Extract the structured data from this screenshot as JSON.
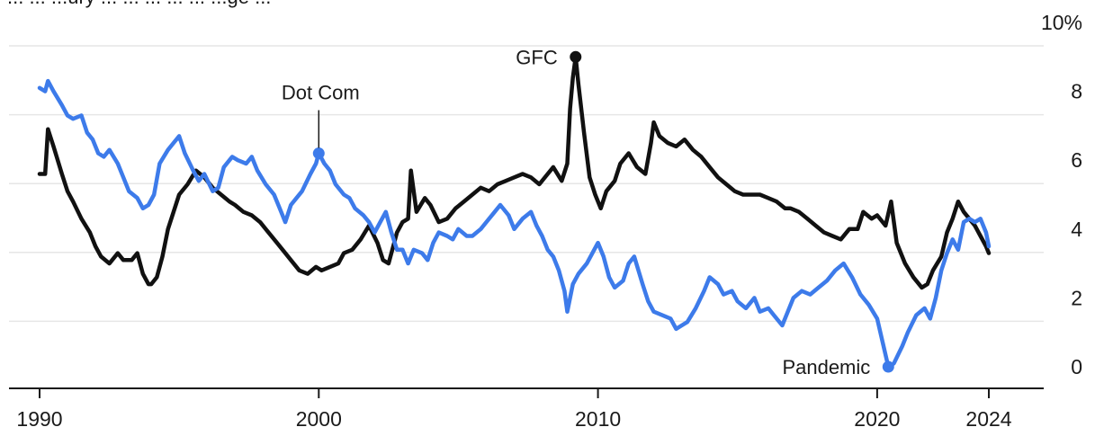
{
  "header": {
    "partial_title": "... ... ...ury ... ... ... ... ... ...ge ..."
  },
  "colors": {
    "black_series": "#111111",
    "blue_series": "#3d7bea",
    "grid": "#e6e6e6",
    "text": "#1a1a1a"
  },
  "chart_data": {
    "type": "line",
    "title": "",
    "xlabel": "",
    "ylabel": "",
    "y_unit_label": "10%",
    "xlim": [
      1990,
      2024
    ],
    "ylim": [
      0,
      10
    ],
    "grid": true,
    "x_ticks": [
      {
        "value": 1990,
        "label": "1990"
      },
      {
        "value": 2000,
        "label": "2000"
      },
      {
        "value": 2010,
        "label": "2010"
      },
      {
        "value": 2020,
        "label": "2020"
      },
      {
        "value": 2024,
        "label": "2024"
      }
    ],
    "y_ticks": [
      {
        "value": 0,
        "label": "0"
      },
      {
        "value": 2,
        "label": "2"
      },
      {
        "value": 4,
        "label": "4"
      },
      {
        "value": 6,
        "label": "6"
      },
      {
        "value": 8,
        "label": "8"
      },
      {
        "value": 10,
        "label": "10%"
      }
    ],
    "series": [
      {
        "color": "#111111",
        "points": [
          [
            1990.0,
            5.6
          ],
          [
            1990.2,
            5.6
          ],
          [
            1990.3,
            6.9
          ],
          [
            1990.5,
            6.4
          ],
          [
            1990.8,
            5.6
          ],
          [
            1991.0,
            5.1
          ],
          [
            1991.2,
            4.8
          ],
          [
            1991.5,
            4.3
          ],
          [
            1991.8,
            3.9
          ],
          [
            1992.0,
            3.5
          ],
          [
            1992.2,
            3.2
          ],
          [
            1992.5,
            3.0
          ],
          [
            1992.8,
            3.3
          ],
          [
            1993.0,
            3.1
          ],
          [
            1993.3,
            3.1
          ],
          [
            1993.5,
            3.3
          ],
          [
            1993.7,
            2.7
          ],
          [
            1993.9,
            2.4
          ],
          [
            1994.0,
            2.4
          ],
          [
            1994.2,
            2.6
          ],
          [
            1994.4,
            3.2
          ],
          [
            1994.6,
            4.0
          ],
          [
            1994.8,
            4.5
          ],
          [
            1995.0,
            5.0
          ],
          [
            1995.3,
            5.3
          ],
          [
            1995.6,
            5.7
          ],
          [
            1995.9,
            5.5
          ],
          [
            1996.2,
            5.2
          ],
          [
            1996.5,
            5.0
          ],
          [
            1996.8,
            4.8
          ],
          [
            1997.0,
            4.7
          ],
          [
            1997.3,
            4.5
          ],
          [
            1997.6,
            4.4
          ],
          [
            1997.9,
            4.2
          ],
          [
            1998.2,
            3.9
          ],
          [
            1998.5,
            3.6
          ],
          [
            1998.8,
            3.3
          ],
          [
            1999.0,
            3.1
          ],
          [
            1999.3,
            2.8
          ],
          [
            1999.6,
            2.7
          ],
          [
            1999.9,
            2.9
          ],
          [
            2000.1,
            2.8
          ],
          [
            2000.4,
            2.9
          ],
          [
            2000.7,
            3.0
          ],
          [
            2000.9,
            3.3
          ],
          [
            2001.2,
            3.4
          ],
          [
            2001.5,
            3.7
          ],
          [
            2001.8,
            4.1
          ],
          [
            2002.1,
            3.6
          ],
          [
            2002.3,
            3.1
          ],
          [
            2002.5,
            3.0
          ],
          [
            2002.8,
            3.9
          ],
          [
            2003.0,
            4.2
          ],
          [
            2003.2,
            4.3
          ],
          [
            2003.3,
            5.7
          ],
          [
            2003.5,
            4.5
          ],
          [
            2003.8,
            4.9
          ],
          [
            2004.0,
            4.7
          ],
          [
            2004.3,
            4.2
          ],
          [
            2004.6,
            4.3
          ],
          [
            2004.9,
            4.6
          ],
          [
            2005.2,
            4.8
          ],
          [
            2005.5,
            5.0
          ],
          [
            2005.8,
            5.2
          ],
          [
            2006.1,
            5.1
          ],
          [
            2006.4,
            5.3
          ],
          [
            2006.7,
            5.4
          ],
          [
            2007.0,
            5.5
          ],
          [
            2007.3,
            5.6
          ],
          [
            2007.6,
            5.5
          ],
          [
            2007.9,
            5.3
          ],
          [
            2008.2,
            5.6
          ],
          [
            2008.4,
            5.8
          ],
          [
            2008.7,
            5.4
          ],
          [
            2008.9,
            5.9
          ],
          [
            2009.0,
            7.5
          ],
          [
            2009.1,
            8.4
          ],
          [
            2009.2,
            9.0
          ],
          [
            2009.3,
            8.2
          ],
          [
            2009.5,
            6.8
          ],
          [
            2009.7,
            5.5
          ],
          [
            2009.9,
            5.0
          ],
          [
            2010.1,
            4.6
          ],
          [
            2010.3,
            5.1
          ],
          [
            2010.6,
            5.4
          ],
          [
            2010.8,
            5.9
          ],
          [
            2011.1,
            6.2
          ],
          [
            2011.4,
            5.8
          ],
          [
            2011.7,
            5.6
          ],
          [
            2011.9,
            6.5
          ],
          [
            2012.0,
            7.1
          ],
          [
            2012.2,
            6.7
          ],
          [
            2012.5,
            6.5
          ],
          [
            2012.8,
            6.4
          ],
          [
            2013.1,
            6.6
          ],
          [
            2013.4,
            6.3
          ],
          [
            2013.7,
            6.1
          ],
          [
            2014.0,
            5.8
          ],
          [
            2014.3,
            5.5
          ],
          [
            2014.6,
            5.3
          ],
          [
            2014.9,
            5.1
          ],
          [
            2015.2,
            5.0
          ],
          [
            2015.5,
            5.0
          ],
          [
            2015.8,
            5.0
          ],
          [
            2016.1,
            4.9
          ],
          [
            2016.4,
            4.8
          ],
          [
            2016.7,
            4.6
          ],
          [
            2016.9,
            4.6
          ],
          [
            2017.2,
            4.5
          ],
          [
            2017.5,
            4.3
          ],
          [
            2017.8,
            4.1
          ],
          [
            2018.1,
            3.9
          ],
          [
            2018.4,
            3.8
          ],
          [
            2018.7,
            3.7
          ],
          [
            2019.0,
            4.0
          ],
          [
            2019.3,
            4.0
          ],
          [
            2019.5,
            4.5
          ],
          [
            2019.8,
            4.3
          ],
          [
            2020.0,
            4.4
          ],
          [
            2020.3,
            4.1
          ],
          [
            2020.5,
            4.8
          ],
          [
            2020.7,
            3.6
          ],
          [
            2021.0,
            3.0
          ],
          [
            2021.3,
            2.6
          ],
          [
            2021.6,
            2.3
          ],
          [
            2021.8,
            2.4
          ],
          [
            2022.0,
            2.8
          ],
          [
            2022.3,
            3.2
          ],
          [
            2022.5,
            3.9
          ],
          [
            2022.7,
            4.3
          ],
          [
            2022.9,
            4.8
          ],
          [
            2023.1,
            4.5
          ],
          [
            2023.3,
            4.3
          ],
          [
            2023.5,
            4.1
          ],
          [
            2023.7,
            3.8
          ],
          [
            2023.9,
            3.5
          ],
          [
            2024.0,
            3.3
          ]
        ]
      },
      {
        "color": "#3d7bea",
        "points": [
          [
            1990.0,
            8.1
          ],
          [
            1990.2,
            8.0
          ],
          [
            1990.3,
            8.3
          ],
          [
            1990.5,
            8.0
          ],
          [
            1990.8,
            7.6
          ],
          [
            1991.0,
            7.3
          ],
          [
            1991.2,
            7.2
          ],
          [
            1991.5,
            7.3
          ],
          [
            1991.7,
            6.8
          ],
          [
            1991.9,
            6.6
          ],
          [
            1992.1,
            6.2
          ],
          [
            1992.3,
            6.1
          ],
          [
            1992.5,
            6.3
          ],
          [
            1992.8,
            5.9
          ],
          [
            1993.0,
            5.5
          ],
          [
            1993.2,
            5.1
          ],
          [
            1993.5,
            4.9
          ],
          [
            1993.7,
            4.6
          ],
          [
            1993.9,
            4.7
          ],
          [
            1994.1,
            5.0
          ],
          [
            1994.3,
            5.9
          ],
          [
            1994.6,
            6.3
          ],
          [
            1994.8,
            6.5
          ],
          [
            1995.0,
            6.7
          ],
          [
            1995.2,
            6.2
          ],
          [
            1995.5,
            5.7
          ],
          [
            1995.7,
            5.4
          ],
          [
            1995.9,
            5.6
          ],
          [
            1996.2,
            5.1
          ],
          [
            1996.4,
            5.2
          ],
          [
            1996.6,
            5.8
          ],
          [
            1996.9,
            6.1
          ],
          [
            1997.1,
            6.0
          ],
          [
            1997.4,
            5.9
          ],
          [
            1997.6,
            6.1
          ],
          [
            1997.8,
            5.7
          ],
          [
            1998.1,
            5.3
          ],
          [
            1998.4,
            5.0
          ],
          [
            1998.6,
            4.6
          ],
          [
            1998.8,
            4.2
          ],
          [
            1999.0,
            4.7
          ],
          [
            1999.2,
            4.9
          ],
          [
            1999.4,
            5.1
          ],
          [
            1999.7,
            5.6
          ],
          [
            1999.9,
            5.9
          ],
          [
            2000.0,
            6.2
          ],
          [
            2000.2,
            5.9
          ],
          [
            2000.4,
            5.7
          ],
          [
            2000.6,
            5.3
          ],
          [
            2000.9,
            5.0
          ],
          [
            2001.1,
            4.9
          ],
          [
            2001.3,
            4.6
          ],
          [
            2001.6,
            4.4
          ],
          [
            2001.8,
            4.2
          ],
          [
            2002.0,
            3.9
          ],
          [
            2002.2,
            4.2
          ],
          [
            2002.4,
            4.5
          ],
          [
            2002.6,
            3.9
          ],
          [
            2002.8,
            3.4
          ],
          [
            2003.0,
            3.4
          ],
          [
            2003.2,
            3.0
          ],
          [
            2003.4,
            3.4
          ],
          [
            2003.7,
            3.3
          ],
          [
            2003.9,
            3.1
          ],
          [
            2004.1,
            3.6
          ],
          [
            2004.3,
            3.9
          ],
          [
            2004.6,
            3.8
          ],
          [
            2004.8,
            3.7
          ],
          [
            2005.0,
            4.0
          ],
          [
            2005.3,
            3.8
          ],
          [
            2005.5,
            3.8
          ],
          [
            2005.8,
            4.0
          ],
          [
            2006.0,
            4.2
          ],
          [
            2006.3,
            4.5
          ],
          [
            2006.5,
            4.7
          ],
          [
            2006.8,
            4.4
          ],
          [
            2007.0,
            4.0
          ],
          [
            2007.3,
            4.3
          ],
          [
            2007.6,
            4.5
          ],
          [
            2007.8,
            4.1
          ],
          [
            2008.0,
            3.8
          ],
          [
            2008.2,
            3.4
          ],
          [
            2008.4,
            3.2
          ],
          [
            2008.6,
            2.8
          ],
          [
            2008.8,
            2.2
          ],
          [
            2008.9,
            1.6
          ],
          [
            2009.1,
            2.4
          ],
          [
            2009.3,
            2.7
          ],
          [
            2009.6,
            3.0
          ],
          [
            2009.8,
            3.3
          ],
          [
            2010.0,
            3.6
          ],
          [
            2010.2,
            3.2
          ],
          [
            2010.4,
            2.6
          ],
          [
            2010.6,
            2.3
          ],
          [
            2010.9,
            2.5
          ],
          [
            2011.1,
            3.0
          ],
          [
            2011.3,
            3.2
          ],
          [
            2011.6,
            2.4
          ],
          [
            2011.8,
            1.9
          ],
          [
            2012.0,
            1.6
          ],
          [
            2012.3,
            1.5
          ],
          [
            2012.6,
            1.4
          ],
          [
            2012.8,
            1.1
          ],
          [
            2013.0,
            1.2
          ],
          [
            2013.2,
            1.3
          ],
          [
            2013.5,
            1.7
          ],
          [
            2013.8,
            2.2
          ],
          [
            2014.0,
            2.6
          ],
          [
            2014.3,
            2.4
          ],
          [
            2014.5,
            2.1
          ],
          [
            2014.8,
            2.2
          ],
          [
            2015.0,
            1.9
          ],
          [
            2015.3,
            1.7
          ],
          [
            2015.6,
            2.0
          ],
          [
            2015.8,
            1.6
          ],
          [
            2016.1,
            1.7
          ],
          [
            2016.3,
            1.5
          ],
          [
            2016.6,
            1.2
          ],
          [
            2016.8,
            1.6
          ],
          [
            2017.0,
            2.0
          ],
          [
            2017.3,
            2.2
          ],
          [
            2017.6,
            2.1
          ],
          [
            2017.9,
            2.3
          ],
          [
            2018.2,
            2.5
          ],
          [
            2018.5,
            2.8
          ],
          [
            2018.8,
            3.0
          ],
          [
            2019.1,
            2.6
          ],
          [
            2019.4,
            2.1
          ],
          [
            2019.7,
            1.8
          ],
          [
            2020.0,
            1.4
          ],
          [
            2020.2,
            0.7
          ],
          [
            2020.4,
            0.0
          ],
          [
            2020.6,
            0.1
          ],
          [
            2020.9,
            0.6
          ],
          [
            2021.1,
            1.0
          ],
          [
            2021.4,
            1.5
          ],
          [
            2021.7,
            1.7
          ],
          [
            2021.9,
            1.4
          ],
          [
            2022.1,
            2.0
          ],
          [
            2022.3,
            2.8
          ],
          [
            2022.5,
            3.3
          ],
          [
            2022.7,
            3.7
          ],
          [
            2022.9,
            3.4
          ],
          [
            2023.1,
            4.2
          ],
          [
            2023.3,
            4.3
          ],
          [
            2023.5,
            4.2
          ],
          [
            2023.7,
            4.3
          ],
          [
            2023.9,
            3.9
          ],
          [
            2024.0,
            3.5
          ]
        ]
      }
    ],
    "annotations": [
      {
        "label": "Dot Com",
        "x": 2000.0,
        "y": 6.2,
        "series_color": "#3d7bea",
        "placement": "above-with-leader"
      },
      {
        "label": "GFC",
        "x": 2009.2,
        "y": 9.0,
        "series_color": "#111111",
        "placement": "left"
      },
      {
        "label": "Pandemic",
        "x": 2020.4,
        "y": 0.0,
        "series_color": "#3d7bea",
        "placement": "left"
      }
    ]
  }
}
